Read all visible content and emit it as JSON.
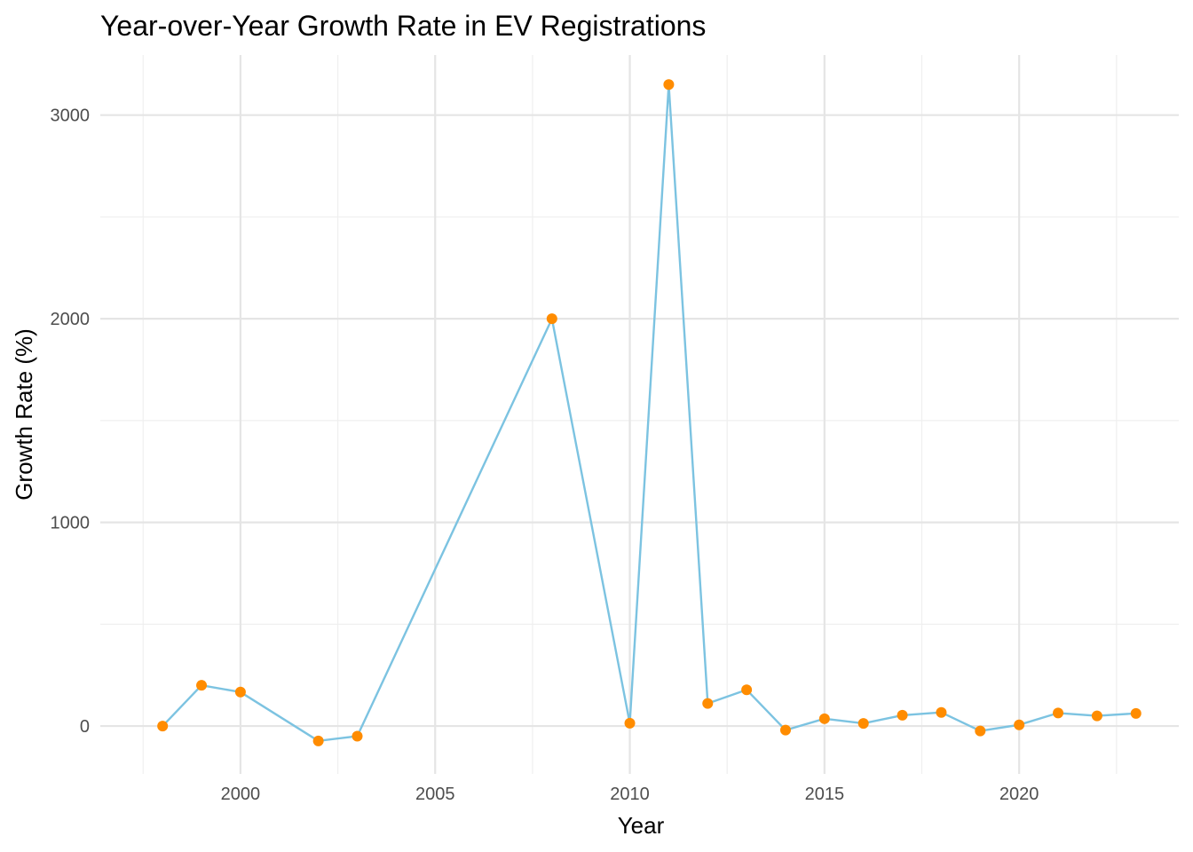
{
  "chart_data": {
    "type": "line",
    "title": "Year-over-Year Growth Rate in EV Registrations",
    "xlabel": "Year",
    "ylabel": "Growth Rate (%)",
    "x_ticks": [
      2000,
      2005,
      2010,
      2015,
      2020
    ],
    "y_ticks": [
      0,
      1000,
      2000,
      3000
    ],
    "xlim": [
      1996.4,
      2024.1
    ],
    "ylim": [
      -235,
      3295
    ],
    "grid": true,
    "legend": "none",
    "colors": {
      "line": "#7cc3e1",
      "points": "#ff8c00"
    },
    "series": [
      {
        "x": [
          1998,
          1999,
          2000,
          2002,
          2003,
          2008,
          2010,
          2011,
          2012,
          2013,
          2014,
          2015,
          2016,
          2017,
          2018,
          2019,
          2020,
          2021,
          2022,
          2023
        ],
        "values": [
          0,
          200,
          167,
          -73,
          -50,
          2000,
          14,
          3150,
          111,
          178,
          -20,
          36,
          13,
          53,
          67,
          -24,
          6,
          64,
          50,
          62
        ]
      }
    ]
  }
}
